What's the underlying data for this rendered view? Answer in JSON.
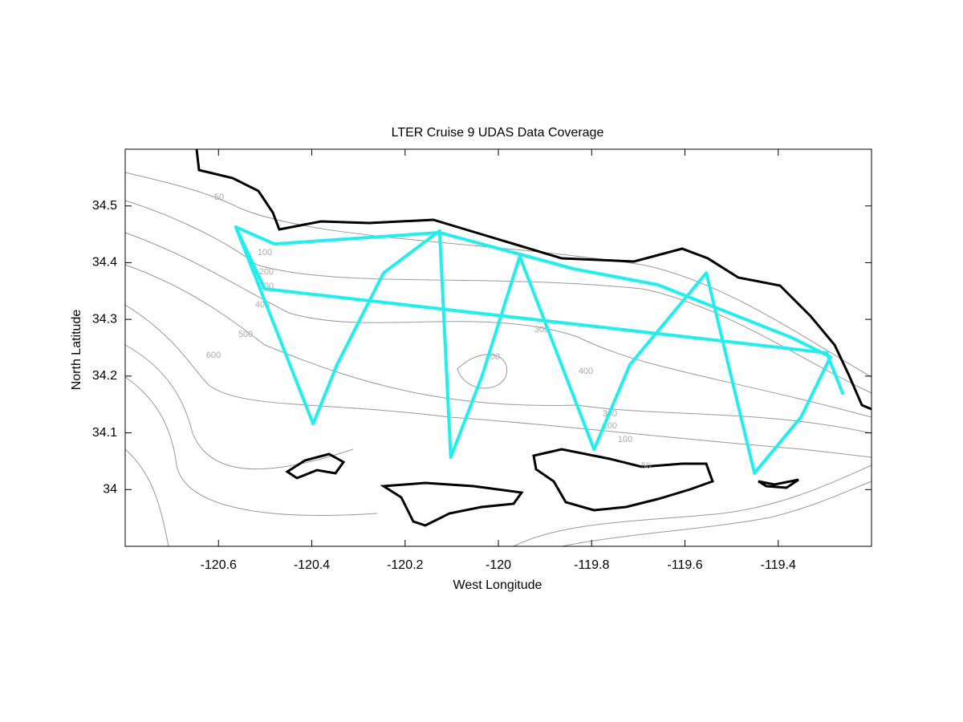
{
  "chart_data": {
    "type": "line",
    "title": "LTER Cruise 9 UDAS Data Coverage",
    "x_label": "West Longitude",
    "y_label": "North Latitude",
    "xlim": [
      -120.8,
      -119.2
    ],
    "ylim": [
      33.9,
      34.6
    ],
    "xticks": [
      -120.6,
      -120.4,
      -120.2,
      -120,
      -119.8,
      -119.6,
      -119.4
    ],
    "yticks": [
      34,
      34.1,
      34.2,
      34.3,
      34.4,
      34.5
    ],
    "contour_labels": [
      50,
      100,
      200,
      300,
      400,
      500,
      600,
      300,
      400,
      400,
      300,
      200,
      100,
      50
    ],
    "series": [
      {
        "color": "#22eeee",
        "x": [
          -120.563,
          -120.397,
          -120.346,
          -120.246,
          -120.126,
          -120.102,
          -120.036,
          -119.954,
          -119.795,
          -119.718,
          -119.554,
          -119.451,
          -119.351,
          -119.288,
          -119.374,
          -119.658,
          -119.838,
          -120.126,
          -120.48,
          -120.563,
          -120.501,
          -119.296,
          -119.262
        ],
        "values": [
          34.463,
          34.116,
          34.22,
          34.382,
          34.456,
          34.057,
          34.198,
          34.411,
          34.071,
          34.22,
          34.382,
          34.029,
          34.128,
          34.234,
          34.269,
          34.361,
          34.389,
          34.453,
          34.433,
          34.463,
          34.354,
          34.241,
          34.17
        ]
      }
    ]
  }
}
